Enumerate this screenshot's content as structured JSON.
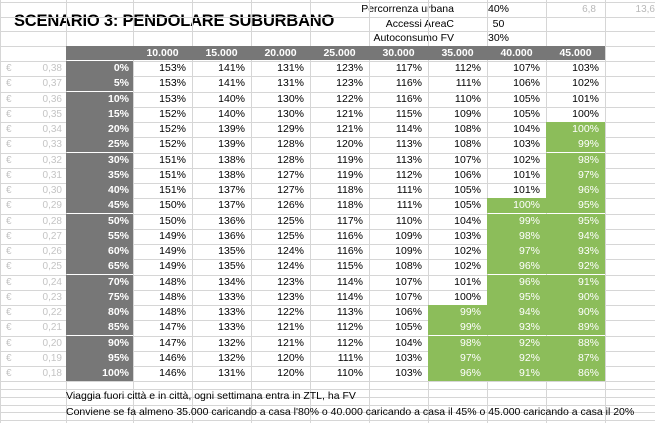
{
  "title": "SCENARIO 3: PENDOLARE SUBURBANO",
  "params": [
    {
      "label": "Percorrenza urbana",
      "value": "40%",
      "extra1": "6,8",
      "extra2": "13,6"
    },
    {
      "label": "Accessi AreaC",
      "value": "50",
      "extra1": "",
      "extra2": ""
    },
    {
      "label": "Autoconsumo FV",
      "value": "30%",
      "extra1": "",
      "extra2": ""
    }
  ],
  "col_headers": [
    "10.000",
    "15.000",
    "20.000",
    "25.000",
    "30.000",
    "35.000",
    "40.000",
    "45.000"
  ],
  "currency_symbol": "€",
  "rows": [
    {
      "cost": "0,38",
      "pct": "0%",
      "vals": [
        "153%",
        "141%",
        "131%",
        "123%",
        "117%",
        "112%",
        "107%",
        "103%"
      ],
      "good": [
        false,
        false,
        false,
        false,
        false,
        false,
        false,
        false
      ]
    },
    {
      "cost": "0,37",
      "pct": "5%",
      "vals": [
        "153%",
        "141%",
        "131%",
        "123%",
        "116%",
        "111%",
        "106%",
        "102%"
      ],
      "good": [
        false,
        false,
        false,
        false,
        false,
        false,
        false,
        false
      ]
    },
    {
      "cost": "0,36",
      "pct": "10%",
      "vals": [
        "153%",
        "140%",
        "130%",
        "122%",
        "116%",
        "110%",
        "105%",
        "101%"
      ],
      "good": [
        false,
        false,
        false,
        false,
        false,
        false,
        false,
        false
      ]
    },
    {
      "cost": "0,35",
      "pct": "15%",
      "vals": [
        "152%",
        "140%",
        "130%",
        "121%",
        "115%",
        "109%",
        "105%",
        "100%"
      ],
      "good": [
        false,
        false,
        false,
        false,
        false,
        false,
        false,
        false
      ]
    },
    {
      "cost": "0,34",
      "pct": "20%",
      "vals": [
        "152%",
        "139%",
        "129%",
        "121%",
        "114%",
        "108%",
        "104%",
        "100%"
      ],
      "good": [
        false,
        false,
        false,
        false,
        false,
        false,
        false,
        true
      ]
    },
    {
      "cost": "0,33",
      "pct": "25%",
      "vals": [
        "152%",
        "139%",
        "128%",
        "120%",
        "113%",
        "108%",
        "103%",
        "99%"
      ],
      "good": [
        false,
        false,
        false,
        false,
        false,
        false,
        false,
        true
      ]
    },
    {
      "cost": "0,32",
      "pct": "30%",
      "vals": [
        "151%",
        "138%",
        "128%",
        "119%",
        "113%",
        "107%",
        "102%",
        "98%"
      ],
      "good": [
        false,
        false,
        false,
        false,
        false,
        false,
        false,
        true
      ]
    },
    {
      "cost": "0,31",
      "pct": "35%",
      "vals": [
        "151%",
        "138%",
        "127%",
        "119%",
        "112%",
        "106%",
        "101%",
        "97%"
      ],
      "good": [
        false,
        false,
        false,
        false,
        false,
        false,
        false,
        true
      ]
    },
    {
      "cost": "0,30",
      "pct": "40%",
      "vals": [
        "151%",
        "137%",
        "127%",
        "118%",
        "111%",
        "105%",
        "101%",
        "96%"
      ],
      "good": [
        false,
        false,
        false,
        false,
        false,
        false,
        false,
        true
      ]
    },
    {
      "cost": "0,29",
      "pct": "45%",
      "vals": [
        "150%",
        "137%",
        "126%",
        "118%",
        "111%",
        "105%",
        "100%",
        "95%"
      ],
      "good": [
        false,
        false,
        false,
        false,
        false,
        false,
        true,
        true
      ]
    },
    {
      "cost": "0,28",
      "pct": "50%",
      "vals": [
        "150%",
        "136%",
        "125%",
        "117%",
        "110%",
        "104%",
        "99%",
        "95%"
      ],
      "good": [
        false,
        false,
        false,
        false,
        false,
        false,
        true,
        true
      ]
    },
    {
      "cost": "0,27",
      "pct": "55%",
      "vals": [
        "149%",
        "136%",
        "125%",
        "116%",
        "109%",
        "103%",
        "98%",
        "94%"
      ],
      "good": [
        false,
        false,
        false,
        false,
        false,
        false,
        true,
        true
      ]
    },
    {
      "cost": "0,26",
      "pct": "60%",
      "vals": [
        "149%",
        "135%",
        "124%",
        "116%",
        "109%",
        "102%",
        "97%",
        "93%"
      ],
      "good": [
        false,
        false,
        false,
        false,
        false,
        false,
        true,
        true
      ]
    },
    {
      "cost": "0,25",
      "pct": "65%",
      "vals": [
        "149%",
        "135%",
        "124%",
        "115%",
        "108%",
        "102%",
        "96%",
        "92%"
      ],
      "good": [
        false,
        false,
        false,
        false,
        false,
        false,
        true,
        true
      ]
    },
    {
      "cost": "0,24",
      "pct": "70%",
      "vals": [
        "148%",
        "134%",
        "123%",
        "114%",
        "107%",
        "101%",
        "96%",
        "91%"
      ],
      "good": [
        false,
        false,
        false,
        false,
        false,
        false,
        true,
        true
      ]
    },
    {
      "cost": "0,23",
      "pct": "75%",
      "vals": [
        "148%",
        "133%",
        "123%",
        "114%",
        "107%",
        "100%",
        "95%",
        "90%"
      ],
      "good": [
        false,
        false,
        false,
        false,
        false,
        false,
        true,
        true
      ]
    },
    {
      "cost": "0,22",
      "pct": "80%",
      "vals": [
        "148%",
        "133%",
        "122%",
        "113%",
        "106%",
        "99%",
        "94%",
        "90%"
      ],
      "good": [
        false,
        false,
        false,
        false,
        false,
        true,
        true,
        true
      ]
    },
    {
      "cost": "0,21",
      "pct": "85%",
      "vals": [
        "147%",
        "133%",
        "121%",
        "112%",
        "105%",
        "99%",
        "93%",
        "89%"
      ],
      "good": [
        false,
        false,
        false,
        false,
        false,
        true,
        true,
        true
      ]
    },
    {
      "cost": "0,20",
      "pct": "90%",
      "vals": [
        "147%",
        "132%",
        "121%",
        "112%",
        "104%",
        "98%",
        "92%",
        "88%"
      ],
      "good": [
        false,
        false,
        false,
        false,
        false,
        true,
        true,
        true
      ]
    },
    {
      "cost": "0,19",
      "pct": "95%",
      "vals": [
        "146%",
        "132%",
        "120%",
        "111%",
        "103%",
        "97%",
        "92%",
        "87%"
      ],
      "good": [
        false,
        false,
        false,
        false,
        false,
        true,
        true,
        true
      ]
    },
    {
      "cost": "0,18",
      "pct": "100%",
      "vals": [
        "146%",
        "131%",
        "120%",
        "110%",
        "103%",
        "96%",
        "91%",
        "86%"
      ],
      "good": [
        false,
        false,
        false,
        false,
        false,
        true,
        true,
        true
      ]
    }
  ],
  "notes": [
    "Viaggia fuori città e in città, ogni settimana entra in ZTL, ha FV",
    "Conviene se fa almeno 35.000 caricando a casa l'80% o 40.000 caricando a casa il 45% o 45.000 caricando a casa il 20%"
  ]
}
